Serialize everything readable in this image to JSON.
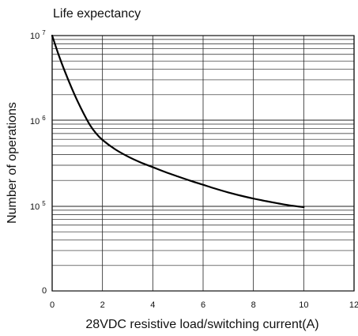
{
  "chart_data": {
    "type": "line",
    "title": "Life expectancy",
    "xlabel": "28VDC resistive load/switching current(A)",
    "ylabel": "Number of operations",
    "xlim": [
      0,
      12
    ],
    "ylim": [
      10000,
      10000000
    ],
    "y_scale": "log",
    "grid": true,
    "x_ticks": [
      0,
      2,
      4,
      6,
      8,
      10,
      12
    ],
    "y_ticks": [
      {
        "base": "0",
        "exp": ""
      },
      {
        "base": "10",
        "exp": "5"
      },
      {
        "base": "10",
        "exp": "6"
      },
      {
        "base": "10",
        "exp": "7"
      }
    ],
    "series": [
      {
        "x": [
          0,
          0.25,
          0.5,
          0.75,
          1,
          1.25,
          1.5,
          1.75,
          2,
          2.5,
          3,
          3.5,
          4,
          4.5,
          5,
          5.5,
          6,
          6.5,
          7,
          7.5,
          8,
          8.5,
          9,
          9.5,
          10
        ],
        "y": [
          10000000,
          6000000,
          3800000,
          2500000,
          1700000,
          1200000,
          880000,
          700000,
          590000,
          460000,
          380000,
          325000,
          285000,
          250000,
          222000,
          198000,
          178000,
          160000,
          145000,
          133000,
          123000,
          115000,
          108000,
          102000,
          98000
        ]
      }
    ]
  }
}
